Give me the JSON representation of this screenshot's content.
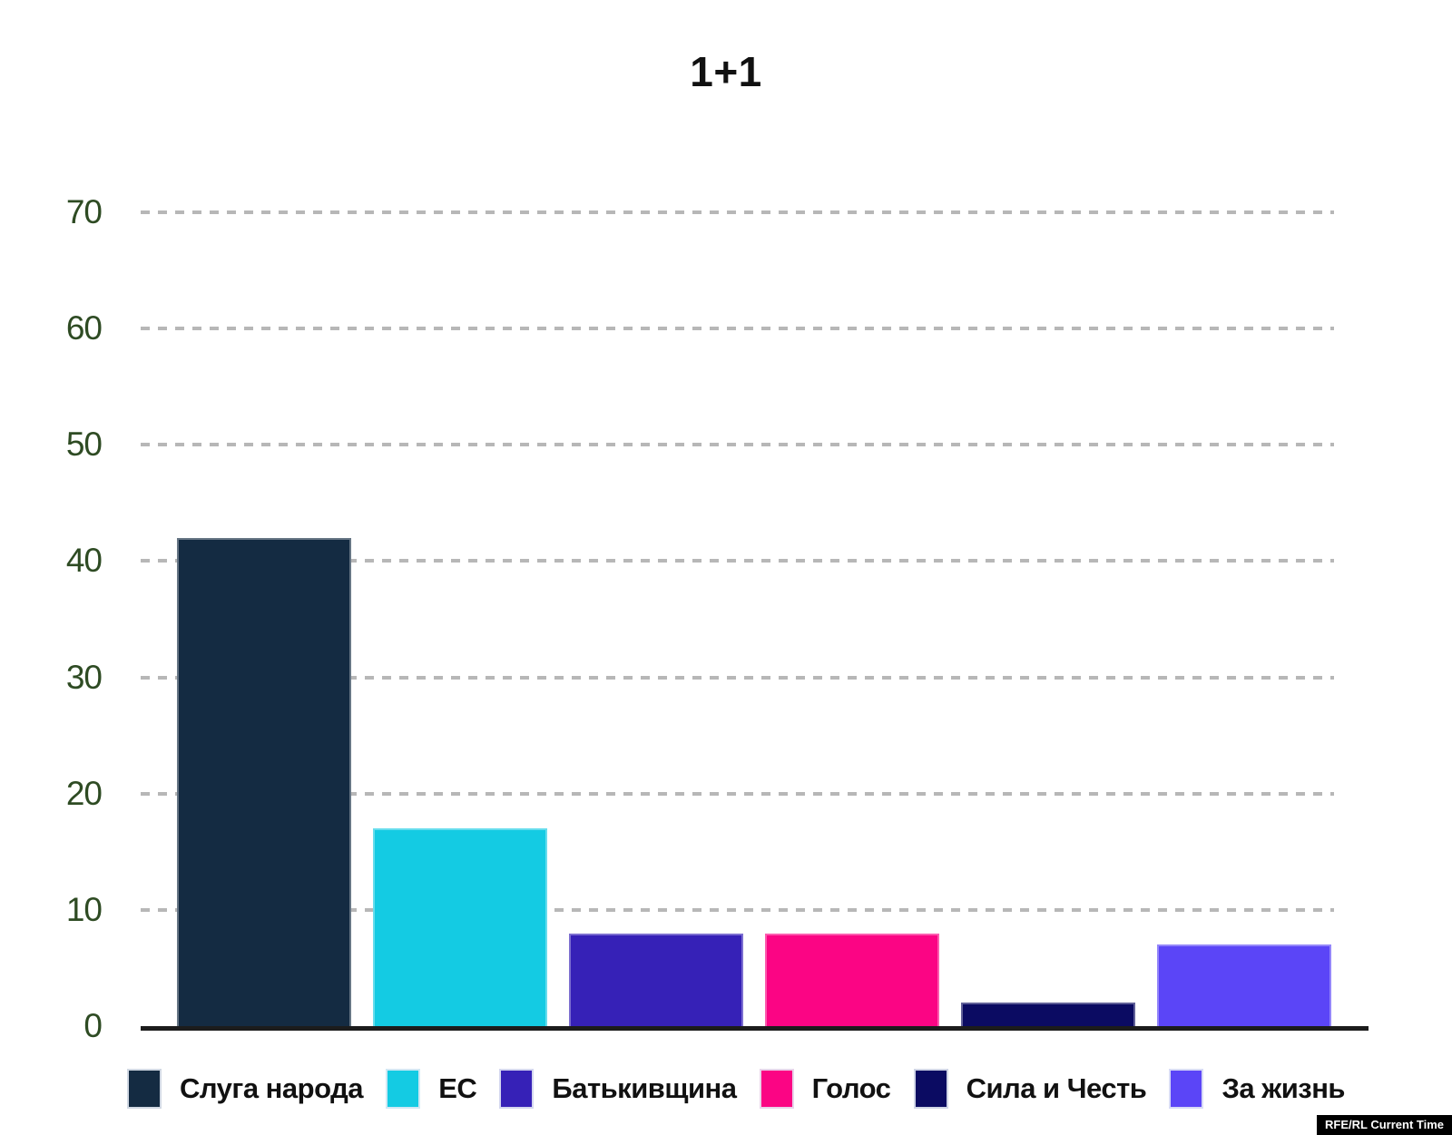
{
  "title": "1+1",
  "watermark": "RFE/RL Current Time",
  "colors": {
    "background": "#ffffff",
    "title_text": "#111111",
    "tick_label": "#2e4b23",
    "gridline": "#b7b7b7",
    "axis_line": "#1c1c1c",
    "legend_text": "#111111",
    "watermark_bg": "#000000",
    "watermark_text": "#ffffff"
  },
  "chart_data": {
    "type": "bar",
    "title": "1+1",
    "categories": [
      "Слуга народа",
      "ЕС",
      "Батькивщина",
      "Голос",
      "Сила и Честь",
      "За жизнь"
    ],
    "values": [
      42,
      17,
      8,
      8,
      2,
      7
    ],
    "bar_colors": [
      "#142b42",
      "#14cbe3",
      "#3621b7",
      "#fb0584",
      "#0b0b62",
      "#5b45f7"
    ],
    "xlabel": "",
    "ylabel": "",
    "ylim": [
      0,
      70
    ],
    "yticks": [
      0,
      10,
      20,
      30,
      40,
      50,
      60,
      70
    ],
    "grid": "dashed horizontal",
    "legend_position": "bottom"
  }
}
